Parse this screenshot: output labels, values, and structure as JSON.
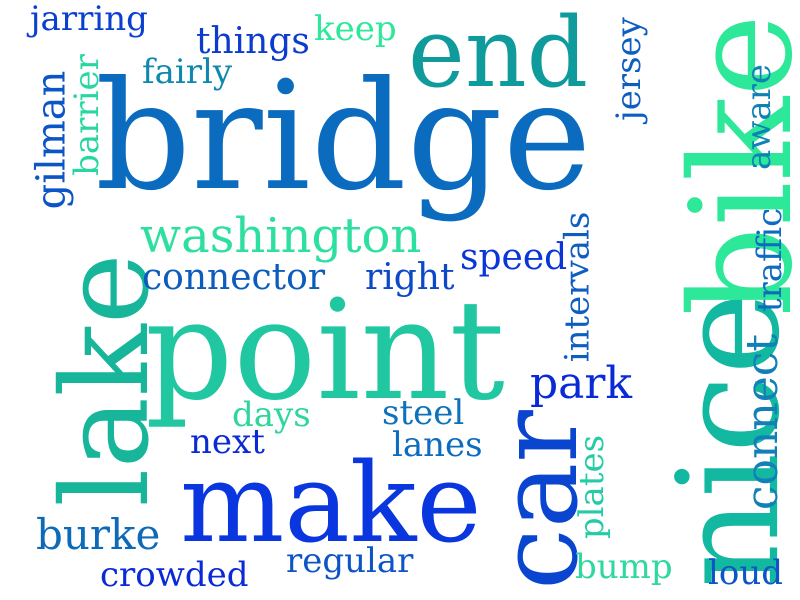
{
  "words": {
    "bridge": {
      "text": "bridge",
      "color": "#0b6cbf"
    },
    "point": {
      "text": "point",
      "color": "#20c7a0"
    },
    "nice": {
      "text": "nice",
      "color": "#12b89f"
    },
    "bike": {
      "text": "bike",
      "color": "#2ee89a"
    },
    "lake": {
      "text": "lake",
      "color": "#17b59a"
    },
    "make": {
      "text": "make",
      "color": "#0a36e0"
    },
    "car": {
      "text": "car",
      "color": "#0a45d0"
    },
    "end": {
      "text": "end",
      "color": "#0f9a9c"
    },
    "washington": {
      "text": "washington",
      "color": "#2ee0a0"
    },
    "connector": {
      "text": "connector",
      "color": "#0b5cbd"
    },
    "right": {
      "text": "right",
      "color": "#0d48c8"
    },
    "speed": {
      "text": "speed",
      "color": "#0a35d8"
    },
    "park": {
      "text": "park",
      "color": "#0a2ad8"
    },
    "intervals": {
      "text": "intervals",
      "color": "#0d5ec0"
    },
    "connect": {
      "text": "connect",
      "color": "#1280b8"
    },
    "traffic": {
      "text": "traffic",
      "color": "#0e6cc0"
    },
    "aware": {
      "text": "aware",
      "color": "#0f82b5"
    },
    "jersey": {
      "text": "jersey",
      "color": "#0e5ec0"
    },
    "things": {
      "text": "things",
      "color": "#0b3ccf"
    },
    "keep": {
      "text": "keep",
      "color": "#2ee89a"
    },
    "fairly": {
      "text": "fairly",
      "color": "#0f88b0"
    },
    "jarring": {
      "text": "jarring",
      "color": "#0b3fcf"
    },
    "gilman": {
      "text": "gilman",
      "color": "#0c55c6"
    },
    "barrier": {
      "text": "barrier",
      "color": "#28d6a2"
    },
    "days": {
      "text": "days",
      "color": "#2ed69c"
    },
    "next": {
      "text": "next",
      "color": "#0a2ad6"
    },
    "steel": {
      "text": "steel",
      "color": "#0e72bb"
    },
    "lanes": {
      "text": "lanes",
      "color": "#0e6cc0"
    },
    "burke": {
      "text": "burke",
      "color": "#0d6ab8"
    },
    "crowded": {
      "text": "crowded",
      "color": "#0a2ad6"
    },
    "regular": {
      "text": "regular",
      "color": "#0d55c6"
    },
    "plates": {
      "text": "plates",
      "color": "#24cca6"
    },
    "bump": {
      "text": "bump",
      "color": "#2ed8a0"
    },
    "loud": {
      "text": "loud",
      "color": "#0d55c6"
    }
  }
}
